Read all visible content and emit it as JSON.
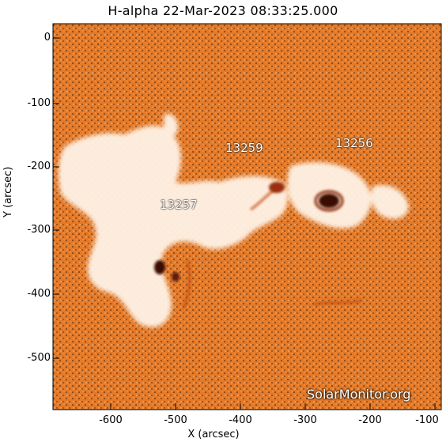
{
  "title": "H-alpha 22-Mar-2023 08:33:25.000",
  "x_axis": {
    "label": "X (arcsec)",
    "ticks": [
      "-600",
      "-500",
      "-400",
      "-300",
      "-200",
      "-100"
    ]
  },
  "y_axis": {
    "label": "Y (arcsec)",
    "ticks": [
      "0",
      "-100",
      "-200",
      "-300",
      "-400",
      "-500"
    ]
  },
  "regions": [
    "13259",
    "13256",
    "13257"
  ],
  "watermark": "SolarMonitor.org",
  "colors": {
    "background": "#e47a28",
    "plage": "#fff2e4",
    "sunspot": "#3a0f05"
  }
}
